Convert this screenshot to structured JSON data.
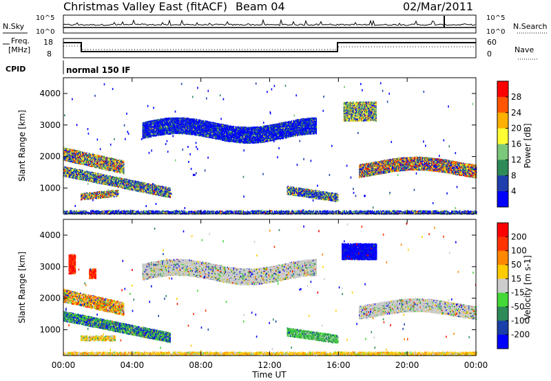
{
  "header": {
    "title": "Christmas Valley East (fitACF)",
    "beam": "Beam 04",
    "date": "02/Mar/2011"
  },
  "noise_panel": {
    "left_label": "N.Sky",
    "right_label": "N.Search",
    "left_ticks": [
      "10^5",
      "10^0"
    ],
    "right_ticks": [
      "10^5",
      "10^0"
    ]
  },
  "freq_panel": {
    "left_label_1": "Freq.",
    "left_label_2": "[MHz]",
    "right_label": "Nave",
    "left_ticks": [
      "18",
      "8"
    ],
    "right_ticks": [
      "60",
      "0"
    ]
  },
  "cpid_panel": {
    "label": "CPID",
    "mode_text": "normal 150 IF"
  },
  "chart_data": [
    {
      "type": "heatmap",
      "name": "power",
      "ylabel": "Slant Range [km]",
      "y_ticks": [
        "1000",
        "2000",
        "3000",
        "4000"
      ],
      "colorbar_label": "Power [dB]",
      "colorbar_ticks": [
        "4",
        "8",
        "12",
        "16",
        "20",
        "24",
        "28"
      ],
      "colorbar_colors": [
        "#0000ff",
        "#1f3fae",
        "#2e8b57",
        "#7cc87a",
        "#ffff33",
        "#ffb000",
        "#ff5500",
        "#ff0000"
      ],
      "xlim": [
        "00:00",
        "24:00"
      ],
      "ylim": [
        180,
        4500
      ]
    },
    {
      "type": "heatmap",
      "name": "velocity",
      "ylabel": "Slant Range [km]",
      "y_ticks": [
        "1000",
        "2000",
        "3000",
        "4000"
      ],
      "colorbar_label": "Velocity [m s-1]",
      "colorbar_ticks": [
        "200",
        "100",
        "50",
        "15",
        "-15",
        "-50",
        "-100",
        "-200"
      ],
      "colorbar_colors": [
        "#0000ff",
        "#1a3fa8",
        "#2e8b57",
        "#44d838",
        "#cccccc",
        "#ffcc00",
        "#ff8800",
        "#ff3300",
        "#ff0000"
      ],
      "xlim": [
        "00:00",
        "24:00"
      ],
      "ylim": [
        180,
        4500
      ]
    }
  ],
  "x_axis": {
    "ticks": [
      "00:00",
      "04:00",
      "08:00",
      "12:00",
      "16:00",
      "20:00",
      "00:00"
    ],
    "label": "Time UT"
  }
}
